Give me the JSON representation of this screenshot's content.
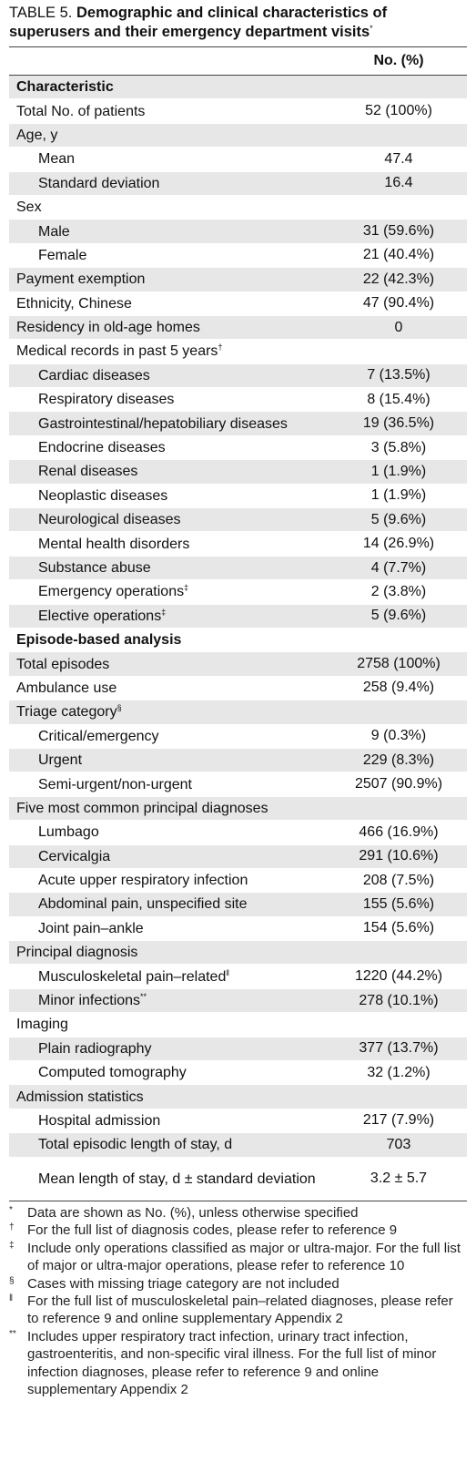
{
  "title": {
    "label": "TABLE 5.",
    "text": "Demographic and clinical characteristics of superusers and their emergency department visits",
    "sup": "*"
  },
  "table": {
    "header": "No. (%)",
    "rows": [
      {
        "label": "Characteristic",
        "section": true
      },
      {
        "label": "Total No. of patients",
        "value": "52 (100%)"
      },
      {
        "label": "Age, y"
      },
      {
        "label": "Mean",
        "value": "47.4",
        "indent": true
      },
      {
        "label": "Standard deviation",
        "value": "16.4",
        "indent": true
      },
      {
        "label": "Sex"
      },
      {
        "label": "Male",
        "value": "31 (59.6%)",
        "indent": true
      },
      {
        "label": "Female",
        "value": "21 (40.4%)",
        "indent": true
      },
      {
        "label": "Payment exemption",
        "value": "22 (42.3%)"
      },
      {
        "label": "Ethnicity, Chinese",
        "value": "47 (90.4%)"
      },
      {
        "label": "Residency in old-age homes",
        "value": "0"
      },
      {
        "label": "Medical records in past 5 years",
        "sup": "†"
      },
      {
        "label": "Cardiac diseases",
        "value": "7 (13.5%)",
        "indent": true
      },
      {
        "label": "Respiratory diseases",
        "value": "8 (15.4%)",
        "indent": true
      },
      {
        "label": "Gastrointestinal/hepatobiliary diseases",
        "value": "19 (36.5%)",
        "indent": true
      },
      {
        "label": "Endocrine diseases",
        "value": "3 (5.8%)",
        "indent": true
      },
      {
        "label": "Renal diseases",
        "value": "1 (1.9%)",
        "indent": true
      },
      {
        "label": "Neoplastic diseases",
        "value": "1 (1.9%)",
        "indent": true
      },
      {
        "label": "Neurological diseases",
        "value": "5 (9.6%)",
        "indent": true
      },
      {
        "label": "Mental health disorders",
        "value": "14 (26.9%)",
        "indent": true
      },
      {
        "label": "Substance abuse",
        "value": "4 (7.7%)",
        "indent": true
      },
      {
        "label": "Emergency operations",
        "sup": "‡",
        "value": "2 (3.8%)",
        "indent": true
      },
      {
        "label": "Elective operations",
        "sup": "‡",
        "value": "5 (9.6%)",
        "indent": true
      },
      {
        "label": "Episode-based analysis",
        "section": true
      },
      {
        "label": "Total episodes",
        "value": "2758 (100%)"
      },
      {
        "label": "Ambulance use",
        "value": "258 (9.4%)"
      },
      {
        "label": "Triage category",
        "sup": "§"
      },
      {
        "label": "Critical/emergency",
        "value": "9 (0.3%)",
        "indent": true
      },
      {
        "label": "Urgent",
        "value": "229 (8.3%)",
        "indent": true
      },
      {
        "label": "Semi-urgent/non-urgent",
        "value": "2507 (90.9%)",
        "indent": true
      },
      {
        "label": "Five most common principal diagnoses"
      },
      {
        "label": "Lumbago",
        "value": "466 (16.9%)",
        "indent": true
      },
      {
        "label": "Cervicalgia",
        "value": "291 (10.6%)",
        "indent": true
      },
      {
        "label": "Acute upper respiratory infection",
        "value": "208 (7.5%)",
        "indent": true
      },
      {
        "label": "Abdominal pain, unspecified site",
        "value": "155 (5.6%)",
        "indent": true
      },
      {
        "label": "Joint pain–ankle",
        "value": "154 (5.6%)",
        "indent": true
      },
      {
        "label": "Principal diagnosis"
      },
      {
        "label": "Musculoskeletal pain–related",
        "sup": "‖",
        "value": "1220 (44.2%)",
        "indent": true
      },
      {
        "label": "Minor infections",
        "sup": "**",
        "value": "278 (10.1%)",
        "indent": true
      },
      {
        "label": "Imaging"
      },
      {
        "label": "Plain radiography",
        "value": "377 (13.7%)",
        "indent": true
      },
      {
        "label": "Computed tomography",
        "value": "32 (1.2%)",
        "indent": true
      },
      {
        "label": "Admission statistics"
      },
      {
        "label": "Hospital admission",
        "value": "217 (7.9%)",
        "indent": true
      },
      {
        "label": "Total episodic length of stay, d",
        "value": "703",
        "indent": true
      },
      {
        "label": "Mean length of stay, d ± standard deviation",
        "value": "3.2 ± 5.7",
        "indent": true
      }
    ]
  },
  "footnotes": [
    {
      "symbol": "*",
      "text": "Data are shown as No. (%), unless otherwise specified"
    },
    {
      "symbol": "†",
      "text": "For the full list of diagnosis codes, please refer to reference 9"
    },
    {
      "symbol": "‡",
      "text": "Include only operations classified as major or ultra-major. For the full list of major or ultra-major operations, please refer to reference 10"
    },
    {
      "symbol": "§",
      "text": "Cases with missing triage category are not included"
    },
    {
      "symbol": "‖",
      "text": "For the full list of musculoskeletal pain–related diagnoses, please refer to reference 9 and online supplementary Appendix 2"
    },
    {
      "symbol": "**",
      "text": "Includes upper respiratory tract infection, urinary tract infection, gastroenteritis, and non-specific viral illness. For the full list of minor infection diagnoses, please refer to reference 9 and online supplementary Appendix 2"
    }
  ]
}
